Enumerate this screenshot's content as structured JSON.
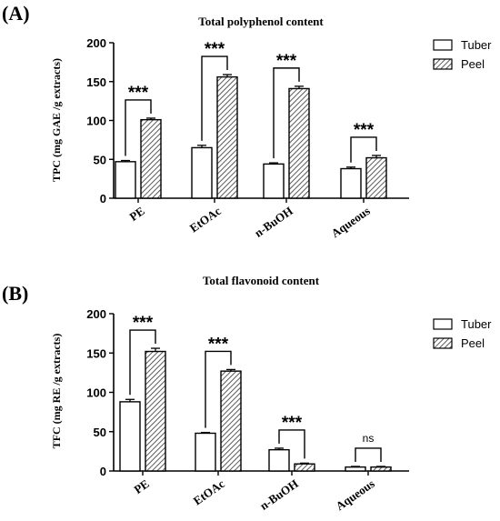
{
  "legend": {
    "tuber": "Tuber",
    "peel": "Peel"
  },
  "chart_data": [
    {
      "type": "bar",
      "panel": "(A)",
      "title": "Total polyphenol content",
      "ylabel": "TPC (mg GAE /g extracts)",
      "ylim": [
        0,
        200
      ],
      "yticks": [
        "0",
        "50",
        "100",
        "150",
        "200"
      ],
      "categories": [
        "PE",
        "EtOAc",
        "n-BuOH",
        "Aqueous"
      ],
      "series": [
        {
          "name": "Tuber",
          "values": [
            47,
            65,
            44,
            38
          ],
          "errors": [
            1.5,
            3,
            1.5,
            2
          ]
        },
        {
          "name": "Peel",
          "values": [
            101,
            156,
            141,
            52
          ],
          "errors": [
            2,
            3,
            3,
            3
          ]
        }
      ],
      "significance": [
        "***",
        "***",
        "***",
        "***"
      ]
    },
    {
      "type": "bar",
      "panel": "(B)",
      "title": "Total flavonoid content",
      "ylabel": "TFC (mg RE /g extracts)",
      "ylim": [
        0,
        200
      ],
      "yticks": [
        "0",
        "50",
        "100",
        "150",
        "200"
      ],
      "categories": [
        "PE",
        "EtOAc",
        "n-BuOH",
        "Aqueous"
      ],
      "series": [
        {
          "name": "Tuber",
          "values": [
            88,
            48,
            27,
            5
          ],
          "errors": [
            3,
            1,
            2,
            0.8
          ]
        },
        {
          "name": "Peel",
          "values": [
            152,
            127,
            9,
            5
          ],
          "errors": [
            4,
            2,
            1,
            0.8
          ]
        }
      ],
      "significance": [
        "***",
        "***",
        "***",
        "ns"
      ]
    }
  ]
}
